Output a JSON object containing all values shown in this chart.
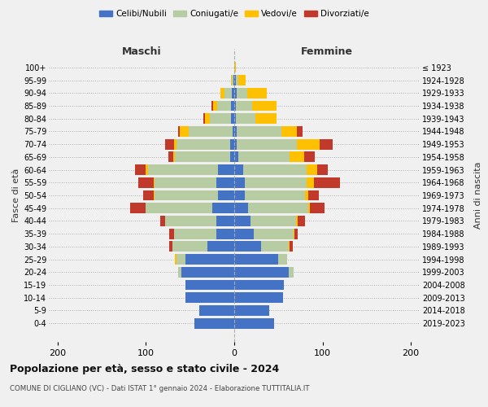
{
  "age_groups": [
    "0-4",
    "5-9",
    "10-14",
    "15-19",
    "20-24",
    "25-29",
    "30-34",
    "35-39",
    "40-44",
    "45-49",
    "50-54",
    "55-59",
    "60-64",
    "65-69",
    "70-74",
    "75-79",
    "80-84",
    "85-89",
    "90-94",
    "95-99",
    "100+"
  ],
  "birth_years": [
    "2019-2023",
    "2014-2018",
    "2009-2013",
    "2004-2008",
    "1999-2003",
    "1994-1998",
    "1989-1993",
    "1984-1988",
    "1979-1983",
    "1974-1978",
    "1969-1973",
    "1964-1968",
    "1959-1963",
    "1954-1958",
    "1949-1953",
    "1944-1948",
    "1939-1943",
    "1934-1938",
    "1929-1933",
    "1924-1928",
    "≤ 1923"
  ],
  "males": {
    "celibi": [
      45,
      40,
      55,
      55,
      60,
      55,
      30,
      20,
      20,
      25,
      18,
      20,
      18,
      5,
      5,
      2,
      4,
      4,
      3,
      1,
      0
    ],
    "coniugati": [
      0,
      0,
      0,
      0,
      4,
      10,
      40,
      48,
      58,
      75,
      72,
      70,
      80,
      62,
      60,
      50,
      24,
      15,
      8,
      2,
      0
    ],
    "vedovi": [
      0,
      0,
      0,
      0,
      0,
      2,
      0,
      0,
      0,
      0,
      1,
      1,
      2,
      2,
      3,
      10,
      5,
      5,
      5,
      1,
      0
    ],
    "divorziati": [
      0,
      0,
      0,
      0,
      0,
      0,
      4,
      6,
      6,
      18,
      12,
      18,
      12,
      6,
      10,
      2,
      2,
      2,
      0,
      0,
      0
    ]
  },
  "females": {
    "nubili": [
      45,
      40,
      55,
      56,
      62,
      50,
      30,
      22,
      18,
      16,
      12,
      12,
      10,
      5,
      3,
      3,
      2,
      2,
      3,
      2,
      0
    ],
    "coniugate": [
      0,
      0,
      0,
      0,
      5,
      10,
      32,
      45,
      52,
      68,
      68,
      70,
      72,
      58,
      68,
      50,
      22,
      18,
      12,
      3,
      0
    ],
    "vedove": [
      0,
      0,
      0,
      0,
      0,
      0,
      1,
      1,
      2,
      2,
      4,
      8,
      12,
      16,
      26,
      18,
      24,
      28,
      22,
      8,
      2
    ],
    "divorziate": [
      0,
      0,
      0,
      0,
      0,
      0,
      3,
      4,
      8,
      16,
      12,
      30,
      12,
      12,
      14,
      6,
      0,
      0,
      0,
      0,
      0
    ]
  },
  "colors": {
    "celibi": "#4472c4",
    "coniugati": "#b8cca4",
    "vedovi": "#ffc000",
    "divorziati": "#c0392b"
  },
  "xlim": [
    -210,
    210
  ],
  "xticks": [
    -200,
    -100,
    0,
    100,
    200
  ],
  "xticklabels": [
    "200",
    "100",
    "0",
    "100",
    "200"
  ],
  "title": "Popolazione per età, sesso e stato civile - 2024",
  "subtitle": "COMUNE DI CIGLIANO (VC) - Dati ISTAT 1° gennaio 2024 - Elaborazione TUTTITALIA.IT",
  "ylabel_left": "Fasce di età",
  "ylabel_right": "Anni di nascita",
  "label_maschi": "Maschi",
  "label_femmine": "Femmine",
  "legend_celibi": "Celibi/Nubili",
  "legend_coniugati": "Coniugati/e",
  "legend_vedovi": "Vedovi/e",
  "legend_divorziati": "Divorziati/e",
  "background_color": "#f0f0f0",
  "bar_height": 0.82
}
